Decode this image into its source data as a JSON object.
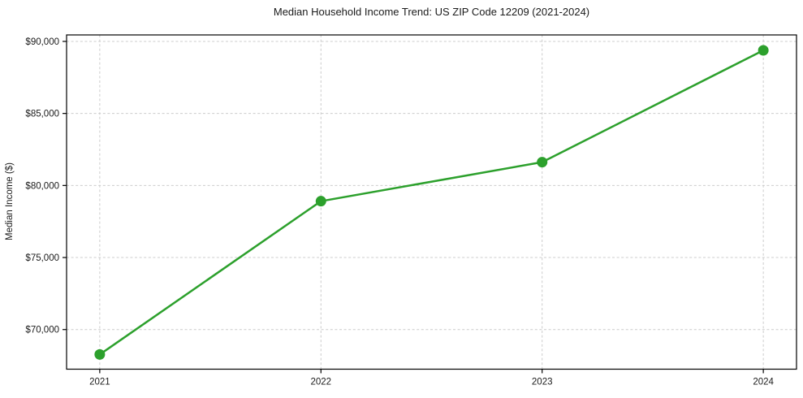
{
  "chart_data": {
    "type": "line",
    "title": "Median Household Income Trend: US ZIP Code 12209 (2021-2024)",
    "xlabel": "",
    "ylabel": "Median Income ($)",
    "x": [
      2021,
      2022,
      2023,
      2024
    ],
    "x_tick_labels": [
      "2021",
      "2022",
      "2023",
      "2024"
    ],
    "values": [
      68270,
      78910,
      81620,
      89380
    ],
    "y_ticks": [
      70000,
      75000,
      80000,
      85000,
      90000
    ],
    "y_tick_labels": [
      "$70,000",
      "$75,000",
      "$80,000",
      "$85,000",
      "$90,000"
    ],
    "xlim": [
      2020.85,
      2024.15
    ],
    "ylim": [
      67250,
      90450
    ],
    "grid": true,
    "grid_style": "dashed",
    "legend_position": "none",
    "colors": {
      "line": "#2ca02c",
      "marker": "#2ca02c",
      "grid": "#cccccc",
      "axis": "#000000",
      "text": "#1a1a1a",
      "background": "#ffffff"
    }
  }
}
